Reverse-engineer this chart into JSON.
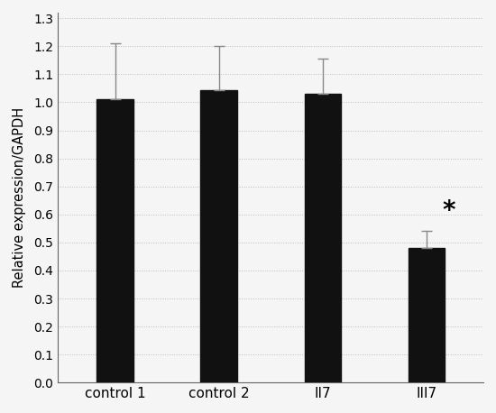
{
  "categories": [
    "control 1",
    "control 2",
    "II7",
    "III7"
  ],
  "values": [
    1.01,
    1.045,
    1.03,
    0.48
  ],
  "errors": [
    0.2,
    0.155,
    0.125,
    0.062
  ],
  "bar_color": "#111111",
  "error_color": "#888888",
  "ylabel": "Relative expression/GAPDH",
  "ylim": [
    0.0,
    1.32
  ],
  "yticks": [
    0.0,
    0.1,
    0.2,
    0.3,
    0.4,
    0.5,
    0.6,
    0.7,
    0.8,
    0.9,
    1.0,
    1.1,
    1.2,
    1.3
  ],
  "grid_color": "#bbbbbb",
  "background_color": "#f5f5f5",
  "bar_width": 0.35,
  "asterisk_index": 3,
  "asterisk_text": "*",
  "asterisk_fontsize": 20,
  "tick_fontsize": 10,
  "xlabel_fontsize": 11,
  "ylabel_fontsize": 10.5
}
